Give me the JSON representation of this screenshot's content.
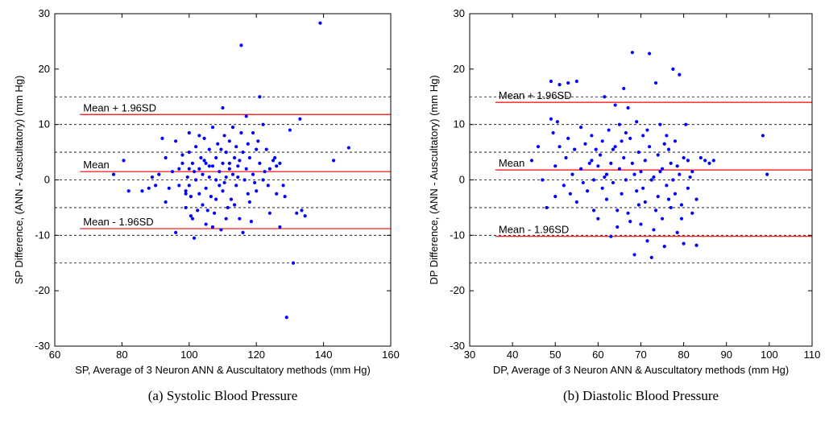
{
  "chart_data": [
    {
      "type": "scatter",
      "caption": "(a) Systolic Blood Pressure",
      "xlabel": "SP, Average of 3 Neuron ANN & Auscultatory methods (mm Hg)",
      "ylabel": "SP Difference, (ANN - Auscultatory) (mm Hg)",
      "xlim": [
        60,
        160
      ],
      "ylim": [
        -30,
        30
      ],
      "xticks": [
        60,
        80,
        100,
        120,
        140,
        160
      ],
      "yticks": [
        -30,
        -20,
        -10,
        0,
        10,
        20,
        30
      ],
      "grid_lines_y": [
        -15,
        -10,
        -5,
        0,
        5,
        10,
        15
      ],
      "grid": "dashed horizontal lines at 5 mm Hg intervals",
      "marker_color": "#0000ff",
      "reference_line_color": "#ff0000",
      "reference_lines": [
        {
          "label": "Mean + 1.96SD",
          "value": 11.8
        },
        {
          "label": "Mean",
          "value": 1.5
        },
        {
          "label": "Mean - 1.96SD",
          "value": -8.8
        }
      ],
      "points": [
        [
          77.5,
          1
        ],
        [
          80.5,
          3.5
        ],
        [
          82,
          -2
        ],
        [
          86,
          -2
        ],
        [
          88,
          -1.5
        ],
        [
          89,
          0.5
        ],
        [
          90,
          -1
        ],
        [
          91,
          1
        ],
        [
          92,
          7.5
        ],
        [
          93,
          4
        ],
        [
          93,
          -4
        ],
        [
          95,
          1.5
        ],
        [
          96,
          -9.5
        ],
        [
          97,
          2
        ],
        [
          97,
          -1
        ],
        [
          98,
          4.5
        ],
        [
          98,
          3
        ],
        [
          99,
          -5
        ],
        [
          99,
          -2
        ],
        [
          99.5,
          0.5
        ],
        [
          100,
          5
        ],
        [
          100,
          2
        ],
        [
          100,
          -1
        ],
        [
          100.5,
          -3
        ],
        [
          101,
          3
        ],
        [
          101,
          -7
        ],
        [
          101.5,
          -10.5
        ],
        [
          102,
          0
        ],
        [
          102,
          6
        ],
        [
          102.5,
          -5.5
        ],
        [
          103,
          2
        ],
        [
          103,
          -2.5
        ],
        [
          103.5,
          4
        ],
        [
          104,
          1
        ],
        [
          104,
          -4.5
        ],
        [
          104.5,
          7.5
        ],
        [
          105,
          3
        ],
        [
          105,
          -1.5
        ],
        [
          105,
          -8
        ],
        [
          106,
          5.5
        ],
        [
          106,
          0.5
        ],
        [
          106.5,
          -3
        ],
        [
          107,
          2.5
        ],
        [
          107,
          9.5
        ],
        [
          107.5,
          -6
        ],
        [
          108,
          4
        ],
        [
          108,
          0
        ],
        [
          108.5,
          6.5
        ],
        [
          109,
          -1
        ],
        [
          109,
          1.5
        ],
        [
          109.5,
          -9
        ],
        [
          110,
          13
        ],
        [
          110,
          3
        ],
        [
          110,
          -2
        ],
        [
          110.5,
          8
        ],
        [
          111,
          5
        ],
        [
          111,
          0.5
        ],
        [
          111.5,
          -5
        ],
        [
          112,
          7
        ],
        [
          112,
          2
        ],
        [
          112.5,
          -3.5
        ],
        [
          113,
          9.5
        ],
        [
          113,
          1
        ],
        [
          113.5,
          4
        ],
        [
          114,
          6
        ],
        [
          114,
          -1
        ],
        [
          114.5,
          2.5
        ],
        [
          115,
          3.5
        ],
        [
          115,
          -7
        ],
        [
          115.5,
          24.3
        ],
        [
          116,
          -9.5
        ],
        [
          116,
          5
        ],
        [
          116.5,
          0
        ],
        [
          117,
          11.5
        ],
        [
          117,
          2
        ],
        [
          117.5,
          6.5
        ],
        [
          118,
          -4
        ],
        [
          118,
          4
        ],
        [
          119,
          1
        ],
        [
          119,
          8.5
        ],
        [
          120,
          5.5
        ],
        [
          120,
          -2
        ],
        [
          121,
          15
        ],
        [
          121,
          3
        ],
        [
          122,
          10
        ],
        [
          122,
          0
        ],
        [
          123,
          5.5
        ],
        [
          124,
          2
        ],
        [
          124,
          -6
        ],
        [
          125,
          3.5
        ],
        [
          125.5,
          4
        ],
        [
          126,
          -2.5
        ],
        [
          126,
          2.5
        ],
        [
          127,
          -8.5
        ],
        [
          128,
          -1
        ],
        [
          128.5,
          -3
        ],
        [
          129,
          -24.8
        ],
        [
          130,
          9
        ],
        [
          131,
          -15
        ],
        [
          132,
          -6
        ],
        [
          133,
          11
        ],
        [
          133.5,
          -5.5
        ],
        [
          134.5,
          -6.5
        ],
        [
          139,
          28.3
        ],
        [
          143,
          3.5
        ],
        [
          147.5,
          5.8
        ],
        [
          103,
          8
        ],
        [
          100,
          8.5
        ],
        [
          96,
          7
        ],
        [
          107,
          -8.5
        ],
        [
          111,
          -7
        ],
        [
          118.5,
          -7.5
        ],
        [
          94,
          -1.5
        ],
        [
          99,
          -2.5
        ],
        [
          108,
          -3.5
        ],
        [
          112,
          3
        ],
        [
          104.5,
          3.5
        ],
        [
          109.5,
          5.5
        ],
        [
          115.5,
          8.5
        ],
        [
          120.5,
          7
        ],
        [
          122.5,
          1.5
        ],
        [
          127,
          3
        ],
        [
          100.5,
          -6.5
        ],
        [
          105.5,
          -5.5
        ],
        [
          113.5,
          -4.5
        ],
        [
          117.5,
          -2.5
        ],
        [
          123.5,
          -1
        ],
        [
          101.5,
          1.5
        ],
        [
          106,
          2.5
        ],
        [
          110.5,
          -0.5
        ],
        [
          114.5,
          0.5
        ],
        [
          119.5,
          -0.5
        ]
      ]
    },
    {
      "type": "scatter",
      "caption": "(b) Diastolic Blood Pressure",
      "xlabel": "DP, Average of 3 Neuron ANN & Auscultatory methods (mm Hg)",
      "ylabel": "DP Difference, (ANN - Auscultatory) (mm Hg)",
      "xlim": [
        30,
        110
      ],
      "ylim": [
        -30,
        30
      ],
      "xticks": [
        30,
        40,
        50,
        60,
        70,
        80,
        90,
        100,
        110
      ],
      "yticks": [
        -30,
        -20,
        -10,
        0,
        10,
        20,
        30
      ],
      "grid_lines_y": [
        -15,
        -10,
        -5,
        0,
        5,
        10,
        15
      ],
      "grid": "dashed horizontal lines at 5 mm Hg intervals",
      "marker_color": "#0000ff",
      "reference_line_color": "#ff0000",
      "reference_lines": [
        {
          "label": "Mean + 1.96SD",
          "value": 14
        },
        {
          "label": "Mean",
          "value": 1.8
        },
        {
          "label": "Mean - 1.96SD",
          "value": -10.2
        }
      ],
      "points": [
        [
          44.5,
          3.5
        ],
        [
          46,
          6
        ],
        [
          47,
          0
        ],
        [
          48,
          -5
        ],
        [
          49,
          17.8
        ],
        [
          49,
          11
        ],
        [
          49.5,
          8.5
        ],
        [
          50,
          -3
        ],
        [
          50,
          2.5
        ],
        [
          50.5,
          10.5
        ],
        [
          51,
          17.2
        ],
        [
          51,
          6
        ],
        [
          52,
          -1
        ],
        [
          52.5,
          4
        ],
        [
          53,
          17.5
        ],
        [
          53,
          7.5
        ],
        [
          53.5,
          -2.5
        ],
        [
          54,
          1
        ],
        [
          54.5,
          5.5
        ],
        [
          55,
          17.8
        ],
        [
          55,
          -4
        ],
        [
          56,
          9.5
        ],
        [
          56,
          2
        ],
        [
          56.5,
          -0.5
        ],
        [
          57,
          6.5
        ],
        [
          57.5,
          -2
        ],
        [
          58,
          3
        ],
        [
          58.5,
          8
        ],
        [
          59,
          0
        ],
        [
          59,
          -5.5
        ],
        [
          59.5,
          5.5
        ],
        [
          60,
          2.5
        ],
        [
          60,
          -7
        ],
        [
          60.5,
          4.5
        ],
        [
          61,
          -1.5
        ],
        [
          61,
          7
        ],
        [
          61.5,
          15
        ],
        [
          62,
          1
        ],
        [
          62,
          -3.5
        ],
        [
          62.5,
          9
        ],
        [
          63,
          -10.2
        ],
        [
          63,
          3
        ],
        [
          63.5,
          -0.5
        ],
        [
          64,
          13.5
        ],
        [
          64,
          6
        ],
        [
          64.5,
          -5.5
        ],
        [
          65,
          2
        ],
        [
          65,
          10
        ],
        [
          65.5,
          -2.5
        ],
        [
          66,
          16.5
        ],
        [
          66,
          4
        ],
        [
          66.5,
          0
        ],
        [
          67,
          13
        ],
        [
          67,
          -6
        ],
        [
          67.5,
          7.5
        ],
        [
          68,
          23
        ],
        [
          68,
          3
        ],
        [
          68.5,
          -13.5
        ],
        [
          69,
          10.5
        ],
        [
          69,
          -2
        ],
        [
          69.5,
          5
        ],
        [
          70,
          1.5
        ],
        [
          70,
          -8
        ],
        [
          70.5,
          8
        ],
        [
          71,
          -4
        ],
        [
          71,
          3.5
        ],
        [
          71.5,
          -11
        ],
        [
          72,
          22.8
        ],
        [
          72,
          6
        ],
        [
          72.5,
          -14
        ],
        [
          73,
          0.5
        ],
        [
          73,
          -9
        ],
        [
          73.5,
          17.5
        ],
        [
          74,
          4.5
        ],
        [
          74,
          -3
        ],
        [
          74.5,
          10
        ],
        [
          75,
          -7
        ],
        [
          75,
          2
        ],
        [
          75.5,
          -12
        ],
        [
          76,
          8
        ],
        [
          76,
          -1
        ],
        [
          76.5,
          5.5
        ],
        [
          77,
          -5
        ],
        [
          77,
          3
        ],
        [
          77.5,
          20
        ],
        [
          78,
          -2.5
        ],
        [
          78,
          7
        ],
        [
          78.5,
          -9.5
        ],
        [
          79,
          19
        ],
        [
          79,
          1
        ],
        [
          79.5,
          -4.5
        ],
        [
          80,
          4
        ],
        [
          80,
          -11.5
        ],
        [
          80.5,
          10
        ],
        [
          81,
          -1.5
        ],
        [
          81,
          3.5
        ],
        [
          82,
          -6
        ],
        [
          82,
          1.5
        ],
        [
          83,
          -11.8
        ],
        [
          83,
          -3.5
        ],
        [
          84,
          4
        ],
        [
          85,
          3.5
        ],
        [
          86,
          3
        ],
        [
          87,
          3.5
        ],
        [
          98.5,
          8
        ],
        [
          99.5,
          1
        ],
        [
          66.5,
          8.5
        ],
        [
          69.5,
          -4.5
        ],
        [
          72.5,
          0
        ],
        [
          76.5,
          -3.5
        ],
        [
          63.5,
          5.5
        ],
        [
          67.5,
          -7.5
        ],
        [
          71.5,
          9
        ],
        [
          75.5,
          6.5
        ],
        [
          78.5,
          2.5
        ],
        [
          58.5,
          3.5
        ],
        [
          61.5,
          0.5
        ],
        [
          65.5,
          7
        ],
        [
          70.5,
          -1.5
        ],
        [
          74.5,
          1.5
        ],
        [
          79.5,
          -7
        ],
        [
          81.5,
          0.5
        ],
        [
          64.5,
          -8.5
        ],
        [
          68.5,
          1
        ],
        [
          73.5,
          -5.5
        ],
        [
          77.5,
          0
        ]
      ]
    }
  ]
}
